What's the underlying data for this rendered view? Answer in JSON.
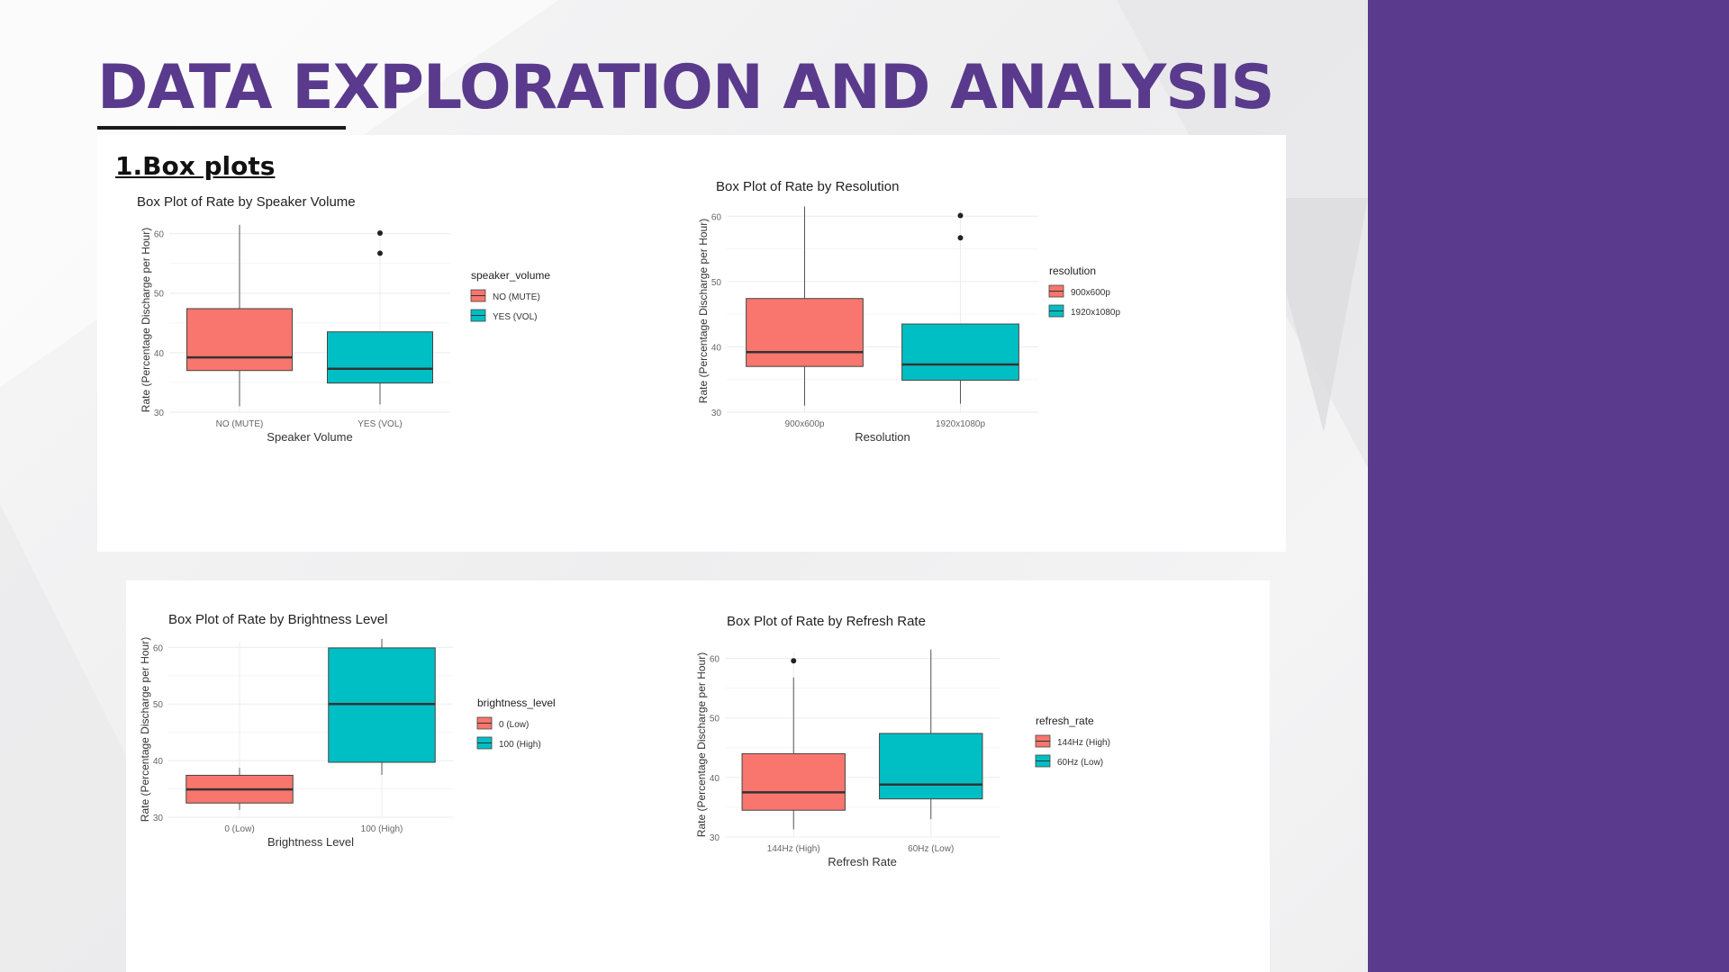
{
  "slide": {
    "title": "DATA EXPLORATION AND ANALYSIS",
    "section": "1.Box plots",
    "accent_color": "#5a3a8c"
  },
  "colors": {
    "low": "#f8766d",
    "high": "#00bfc4"
  },
  "chart_data": [
    {
      "type": "box",
      "title": "Box Plot of Rate by Speaker Volume",
      "xlabel": "Speaker Volume",
      "ylabel": "Rate (Percentage Discharge per Hour)",
      "ylim": [
        30,
        61
      ],
      "yticks": [
        30,
        40,
        50,
        60
      ],
      "legend_title": "speaker_volume",
      "legend_position": "right",
      "categories": [
        "NO (MUTE)",
        "YES (VOL)"
      ],
      "boxes": [
        {
          "category": "NO (MUTE)",
          "min": 31,
          "q1": 37,
          "median": 39.2,
          "q3": 47.4,
          "max": 61.5,
          "outliers": []
        },
        {
          "category": "YES (VOL)",
          "min": 31.3,
          "q1": 34.9,
          "median": 37.3,
          "q3": 43.5,
          "max": 43.5,
          "outliers": [
            56.7,
            60.1
          ]
        }
      ]
    },
    {
      "type": "box",
      "title": "Box Plot of Rate by Resolution",
      "xlabel": "Resolution",
      "ylabel": "Rate (Percentage Discharge per Hour)",
      "ylim": [
        30,
        61
      ],
      "yticks": [
        30,
        40,
        50,
        60
      ],
      "legend_title": "resolution",
      "legend_position": "right",
      "categories": [
        "900x600p",
        "1920x1080p"
      ],
      "boxes": [
        {
          "category": "900x600p",
          "min": 31,
          "q1": 37,
          "median": 39.2,
          "q3": 47.4,
          "max": 61.5,
          "outliers": []
        },
        {
          "category": "1920x1080p",
          "min": 31.3,
          "q1": 34.9,
          "median": 37.3,
          "q3": 43.5,
          "max": 43.5,
          "outliers": [
            56.7,
            60.1
          ]
        }
      ]
    },
    {
      "type": "box",
      "title": "Box Plot of Rate by Brightness Level",
      "xlabel": "Brightness Level",
      "ylabel": "Rate (Percentage Discharge per Hour)",
      "ylim": [
        30,
        61
      ],
      "yticks": [
        30,
        40,
        50,
        60
      ],
      "legend_title": "brightness_level",
      "legend_position": "right",
      "categories": [
        "0 (Low)",
        "100 (High)"
      ],
      "boxes": [
        {
          "category": "0 (Low)",
          "min": 31.3,
          "q1": 32.5,
          "median": 34.9,
          "q3": 37.4,
          "max": 38.7,
          "outliers": []
        },
        {
          "category": "100 (High)",
          "min": 37.5,
          "q1": 39.7,
          "median": 50.0,
          "q3": 59.9,
          "max": 61.5,
          "outliers": []
        }
      ]
    },
    {
      "type": "box",
      "title": "Box Plot of Rate by Refresh Rate",
      "xlabel": "Refresh Rate",
      "ylabel": "Rate (Percentage Discharge per Hour)",
      "ylim": [
        30,
        61
      ],
      "yticks": [
        30,
        40,
        50,
        60
      ],
      "legend_title": "refresh_rate",
      "legend_position": "right",
      "categories": [
        "144Hz (High)",
        "60Hz (Low)"
      ],
      "boxes": [
        {
          "category": "144Hz (High)",
          "min": 31.3,
          "q1": 34.5,
          "median": 37.5,
          "q3": 44.0,
          "max": 56.8,
          "outliers": [
            59.6
          ]
        },
        {
          "category": "60Hz (Low)",
          "min": 33.0,
          "q1": 36.4,
          "median": 38.8,
          "q3": 47.4,
          "max": 61.5,
          "outliers": []
        }
      ]
    }
  ]
}
